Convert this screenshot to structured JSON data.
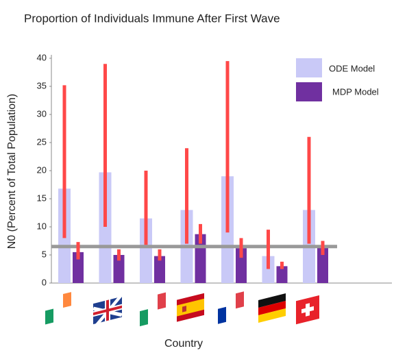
{
  "chart_data": {
    "type": "bar",
    "title": "Proportion of Individuals Immune After First Wave",
    "y_label": "N0 (Percent of Total Population)",
    "x_label": "Country",
    "categories": [
      null,
      null,
      null,
      null,
      null,
      null,
      null
    ],
    "series": [
      {
        "name": "ODE Model",
        "color": "#c9c9f7",
        "values": [
          16.8,
          19.7,
          11.5,
          13,
          19,
          4.8,
          13
        ],
        "low": [
          8,
          10,
          6.8,
          7,
          9,
          2.5,
          7
        ],
        "high": [
          35.2,
          39,
          20,
          24,
          39.5,
          9.5,
          26
        ]
      },
      {
        "name": "MDP Model",
        "color": "#7030a0",
        "values": [
          5.5,
          5,
          4.8,
          8.7,
          6.2,
          3,
          6.5
        ],
        "low": [
          4.2,
          4,
          4,
          7,
          4.5,
          2.5,
          5
        ],
        "high": [
          7.3,
          6,
          6,
          10.5,
          8,
          3.8,
          7.5
        ]
      }
    ],
    "error_color": "#ff4848",
    "reference_line": 6.5,
    "ylim": [
      0,
      40
    ],
    "yticks": [
      0,
      5,
      10,
      15,
      20,
      25,
      30,
      35,
      40
    ],
    "grid": false
  }
}
